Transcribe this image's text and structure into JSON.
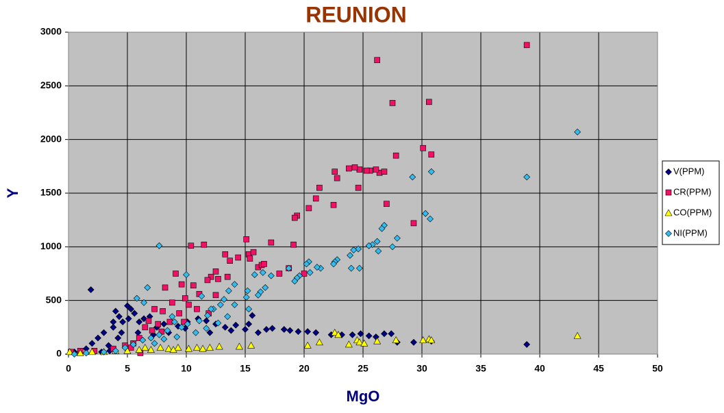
{
  "chart_data": {
    "type": "scatter",
    "title": "REUNION",
    "x_label": "MgO",
    "y_label": "Y",
    "xlim": [
      0,
      50
    ],
    "ylim": [
      0,
      3000
    ],
    "xticks": [
      0,
      5,
      10,
      15,
      20,
      25,
      30,
      35,
      40,
      45,
      50
    ],
    "yticks": [
      0,
      500,
      1000,
      1500,
      2000,
      2500,
      3000
    ],
    "grid": true,
    "legend": "right",
    "series": [
      {
        "name": "V(PPM)",
        "color": "#000080",
        "marker": "diamond",
        "x": [
          1.9,
          4,
          4.3,
          5,
          5.3,
          3.8,
          3,
          2.5,
          2,
          1.5,
          0.5,
          4.6,
          5.6,
          6,
          6.4,
          6.9,
          7.5,
          8.1,
          9.3,
          10.1,
          11,
          11.7,
          12.5,
          13.3,
          14.2,
          15,
          15.3,
          15.6,
          16.1,
          16.8,
          17.3,
          18.3,
          18.8,
          19.5,
          20.3,
          21,
          22.3,
          23.2,
          24.1,
          24.8,
          25.5,
          26.1,
          26.8,
          27.4,
          29.3,
          27.9,
          30.8,
          38.9,
          3.4,
          4.2,
          5.9,
          7.2,
          8.5,
          12,
          13.8,
          9.9,
          3.8,
          4.5,
          5.1,
          2.8,
          3.5
        ],
        "values": [
          600,
          400,
          350,
          450,
          420,
          300,
          200,
          150,
          100,
          50,
          20,
          300,
          380,
          300,
          330,
          350,
          250,
          280,
          260,
          300,
          330,
          310,
          280,
          250,
          270,
          230,
          280,
          360,
          200,
          230,
          240,
          230,
          220,
          210,
          210,
          200,
          180,
          180,
          180,
          190,
          170,
          160,
          190,
          190,
          110,
          110,
          120,
          90,
          80,
          150,
          200,
          180,
          200,
          200,
          220,
          240,
          250,
          200,
          330,
          20,
          30
        ]
      },
      {
        "name": "CR(PPM)",
        "color": "#ee1166",
        "marker": "square",
        "x": [
          26.2,
          38.9,
          27.5,
          30.6,
          30.1,
          30.8,
          27.8,
          26.4,
          26.8,
          26.1,
          25.6,
          25.3,
          24.7,
          24.3,
          23.8,
          22.6,
          22.8,
          21.3,
          21,
          20.4,
          22.5,
          24.6,
          27,
          29.3,
          19.4,
          19.2,
          19.1,
          17.2,
          15.1,
          15.3,
          15.7,
          16.1,
          16.4,
          16.6,
          14.4,
          13.7,
          13.3,
          11.5,
          10.4,
          20,
          18.7,
          17.9,
          15.4,
          13.5,
          12.5,
          12.7,
          12.1,
          11.8,
          11.1,
          10.6,
          9.6,
          9.1,
          8.2,
          7.3,
          6.8,
          6.5,
          7.6,
          8,
          8.8,
          9.9,
          10.2,
          9.4,
          8.6,
          6,
          5.5,
          4.8,
          3.8,
          2.2,
          1,
          0.2,
          6.1,
          5.3,
          11.9,
          12.5,
          10.9,
          9.8,
          7.9,
          7.1
        ],
        "values": [
          2740,
          2880,
          2340,
          2350,
          1920,
          1860,
          1850,
          1690,
          1700,
          1720,
          1710,
          1710,
          1720,
          1740,
          1730,
          1700,
          1640,
          1550,
          1450,
          1360,
          1390,
          1550,
          1400,
          1220,
          1290,
          1270,
          1020,
          1040,
          1070,
          930,
          950,
          810,
          830,
          840,
          900,
          870,
          930,
          1020,
          1010,
          750,
          800,
          750,
          890,
          720,
          770,
          700,
          720,
          690,
          560,
          640,
          650,
          750,
          620,
          420,
          310,
          250,
          280,
          400,
          480,
          520,
          460,
          380,
          300,
          150,
          100,
          80,
          50,
          30,
          30,
          20,
          10,
          60,
          380,
          550,
          420,
          300,
          210,
          220
        ]
      },
      {
        "name": "CO(PPM)",
        "color": "#ffff00",
        "marker": "triangle",
        "x": [
          0.1,
          1,
          2,
          3,
          4,
          5,
          6,
          7,
          7.8,
          8.5,
          9.3,
          10.2,
          10.9,
          11.4,
          12,
          12.8,
          14.5,
          15.5,
          20.3,
          21.3,
          22.6,
          22.9,
          23.8,
          24.5,
          24.7,
          25.1,
          26.2,
          27.8,
          30.1,
          30.6,
          30.8,
          43.2,
          6.5,
          8.9
        ],
        "values": [
          20,
          10,
          20,
          20,
          30,
          30,
          40,
          40,
          60,
          50,
          60,
          50,
          60,
          50,
          60,
          70,
          70,
          80,
          80,
          110,
          200,
          180,
          90,
          130,
          110,
          100,
          120,
          130,
          130,
          140,
          130,
          170,
          60,
          40
        ]
      },
      {
        "name": "NI(PPM)",
        "color": "#33bbee",
        "marker": "diamond",
        "x": [
          7.7,
          43.2,
          38.9,
          29.2,
          30.8,
          30.3,
          30.7,
          27.9,
          27.5,
          26.8,
          26.6,
          26.2,
          26.3,
          25.8,
          25.5,
          24.6,
          24.2,
          23.9,
          24,
          24.7,
          22.8,
          22.6,
          22.5,
          21.4,
          21.1,
          20.5,
          20.4,
          20.2,
          19.6,
          19.4,
          19.2,
          18.7,
          17.2,
          15.8,
          16.5,
          16.7,
          16.3,
          16.1,
          15.2,
          15.1,
          15.3,
          14.1,
          14.1,
          13.6,
          13.2,
          12.9,
          12.3,
          11.8,
          11.1,
          10.1,
          9.6,
          9,
          8.4,
          7.7,
          7,
          6.3,
          5.5,
          4.8,
          4,
          3,
          1.5,
          0.5,
          6.7,
          10,
          11.3,
          12.1,
          6.4,
          5.8,
          8.8,
          10.8,
          9.2,
          11.7,
          13.5,
          12.7,
          7.3,
          8.1
        ],
        "values": [
          1010,
          2070,
          1650,
          1650,
          1700,
          1310,
          1260,
          1080,
          1000,
          1200,
          1170,
          1050,
          960,
          1020,
          1010,
          980,
          970,
          920,
          800,
          800,
          880,
          860,
          840,
          800,
          810,
          760,
          860,
          840,
          730,
          710,
          680,
          800,
          730,
          740,
          760,
          620,
          580,
          550,
          590,
          530,
          420,
          460,
          650,
          590,
          510,
          460,
          420,
          360,
          310,
          280,
          250,
          300,
          220,
          180,
          150,
          130,
          90,
          60,
          30,
          20,
          10,
          0,
          620,
          740,
          540,
          420,
          480,
          520,
          350,
          200,
          160,
          240,
          350,
          290,
          100,
          140
        ]
      }
    ]
  }
}
